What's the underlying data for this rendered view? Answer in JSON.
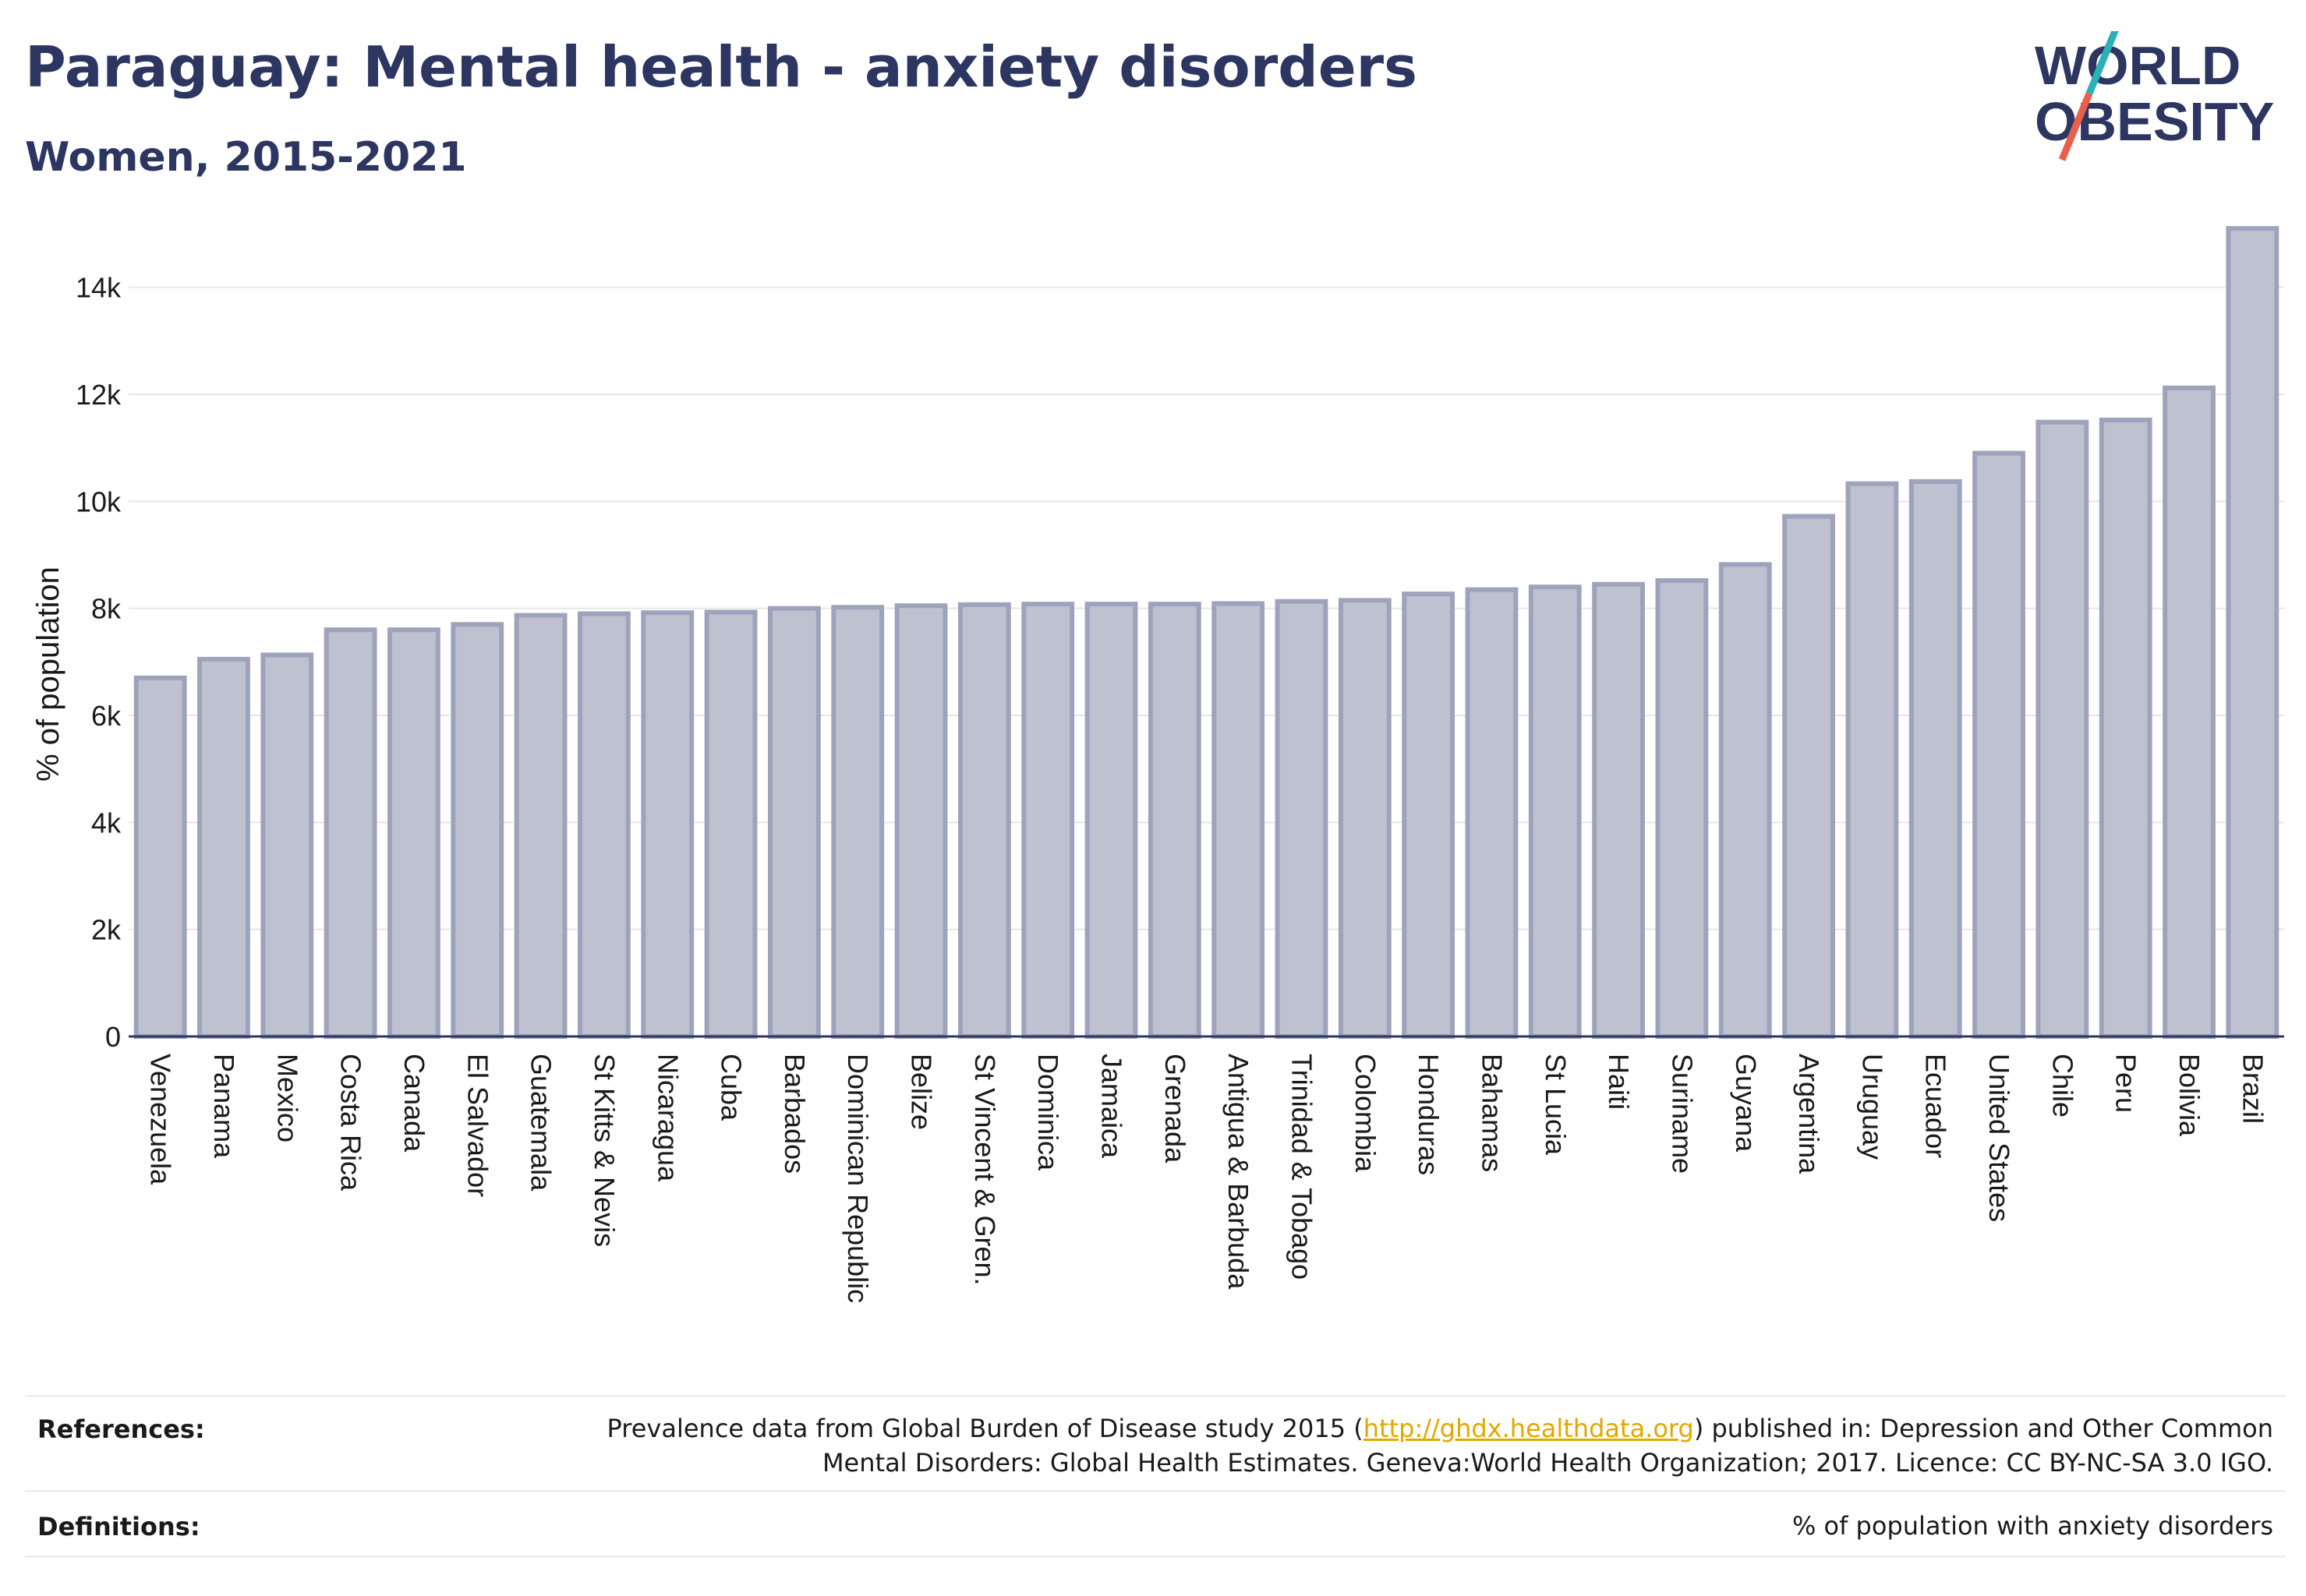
{
  "header": {
    "title": "Paraguay: Mental health - anxiety disorders",
    "subtitle": "Women, 2015-2021"
  },
  "logo": {
    "line1": "WORLD",
    "line2": "OBESITY",
    "colors": {
      "text": "#2d3561",
      "slash_teal": "#2ab0b8",
      "slash_red": "#e8604c"
    }
  },
  "chart_data": {
    "type": "bar",
    "title": "",
    "xlabel": "",
    "ylabel": "% of population",
    "ylim": [
      0,
      15000
    ],
    "yticks": [
      0,
      2000,
      4000,
      6000,
      8000,
      10000,
      12000,
      14000
    ],
    "ytick_labels": [
      "0",
      "2k",
      "4k",
      "6k",
      "8k",
      "10k",
      "12k",
      "14k"
    ],
    "grid": true,
    "bar_fill": "#bec1cf",
    "bar_stroke": "#9ea3bc",
    "categories": [
      "Venezuela",
      "Panama",
      "Mexico",
      "Costa Rica",
      "Canada",
      "El Salvador",
      "Guatemala",
      "St Kitts & Nevis",
      "Nicaragua",
      "Cuba",
      "Barbados",
      "Dominican Republic",
      "Belize",
      "St Vincent & Gren.",
      "Dominica",
      "Jamaica",
      "Grenada",
      "Antigua & Barbuda",
      "Trinidad & Tobago",
      "Colombia",
      "Honduras",
      "Bahamas",
      "St Lucia",
      "Haiti",
      "Suriname",
      "Guyana",
      "Argentina",
      "Uruguay",
      "Ecuador",
      "United States",
      "Chile",
      "Peru",
      "Bolivia",
      "Brazil"
    ],
    "values": [
      6700,
      7050,
      7130,
      7600,
      7600,
      7700,
      7870,
      7900,
      7920,
      7930,
      8000,
      8020,
      8050,
      8070,
      8080,
      8080,
      8080,
      8090,
      8130,
      8150,
      8270,
      8350,
      8400,
      8450,
      8520,
      8820,
      9720,
      10330,
      10370,
      10900,
      11480,
      11520,
      12120,
      15100
    ]
  },
  "footer": {
    "references_label": "References:",
    "references_pre": "Prevalence data from Global Burden of Disease study 2015 (",
    "references_link": "http://ghdx.healthdata.org",
    "references_post": ") published in: Depression and Other Common",
    "references_line2": "Mental Disorders: Global Health Estimates. Geneva:World Health Organization; 2017. Licence: CC BY-NC-SA 3.0 IGO.",
    "definitions_label": "Definitions:",
    "definitions_text": "% of population with anxiety disorders"
  }
}
